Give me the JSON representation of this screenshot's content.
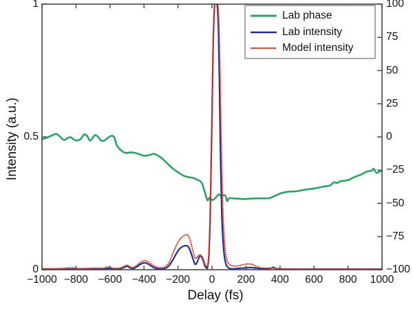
{
  "chart_data": {
    "type": "line",
    "title": "",
    "xlabel": "Delay (fs)",
    "ylabel_left": "Intensity (a.u.)",
    "ylabel_right": "",
    "xlim": [
      -1000,
      1000
    ],
    "ylim_left": [
      0,
      1
    ],
    "ylim_right": [
      -100,
      100
    ],
    "xticks": [
      -1000,
      -800,
      -600,
      -400,
      -200,
      0,
      200,
      400,
      600,
      800,
      1000
    ],
    "yticks_left": [
      0,
      0.5,
      1
    ],
    "yticks_right": [
      100,
      75,
      50,
      25,
      0,
      -25,
      -50,
      -75,
      -100
    ],
    "grid": false,
    "legend_position": "top-right-inside",
    "axis_color": "#454545",
    "series": [
      {
        "name": "Lab phase",
        "axis": "right",
        "color": "#2aa263",
        "style": "solid",
        "width": 2.6,
        "points": [
          [
            -1000,
            -1.8
          ],
          [
            -970,
            -0.5
          ],
          [
            -940,
            1.2
          ],
          [
            -915,
            2.3
          ],
          [
            -895,
            0.3
          ],
          [
            -870,
            -2.3
          ],
          [
            -848,
            -0.8
          ],
          [
            -830,
            -0.3
          ],
          [
            -805,
            -2.5
          ],
          [
            -775,
            -1.8
          ],
          [
            -753,
            1.8
          ],
          [
            -735,
            0.8
          ],
          [
            -716,
            -2.8
          ],
          [
            -690,
            1.2
          ],
          [
            -670,
            0.0
          ],
          [
            -652,
            -2.8
          ],
          [
            -632,
            -2.6
          ],
          [
            -611,
            -0.5
          ],
          [
            -592,
            0.8
          ],
          [
            -575,
            -0.3
          ],
          [
            -559,
            -6.5
          ],
          [
            -530,
            -10.6
          ],
          [
            -506,
            -12.1
          ],
          [
            -478,
            -11.6
          ],
          [
            -449,
            -12.1
          ],
          [
            -425,
            -13.2
          ],
          [
            -397,
            -14.2
          ],
          [
            -368,
            -13.7
          ],
          [
            -344,
            -12.7
          ],
          [
            -324,
            -13.7
          ],
          [
            -303,
            -15.3
          ],
          [
            -275,
            -18.4
          ],
          [
            -247,
            -22.0
          ],
          [
            -223,
            -24.5
          ],
          [
            -194,
            -27.1
          ],
          [
            -166,
            -29.2
          ],
          [
            -142,
            -30.2
          ],
          [
            -113,
            -30.8
          ],
          [
            -85,
            -32.3
          ],
          [
            -61,
            -34.4
          ],
          [
            -45,
            -40.5
          ],
          [
            -32,
            -46.0
          ],
          [
            -25,
            -47.8
          ],
          [
            -15,
            -45.8
          ],
          [
            -5,
            -47.0
          ],
          [
            5,
            -47.5
          ],
          [
            16,
            -46.5
          ],
          [
            30,
            -44.5
          ],
          [
            40,
            -43.2
          ],
          [
            55,
            -44.5
          ],
          [
            70,
            -43.8
          ],
          [
            80,
            -44.5
          ],
          [
            89,
            -48.3
          ],
          [
            100,
            -46.2
          ],
          [
            120,
            -46.2
          ],
          [
            150,
            -46.5
          ],
          [
            190,
            -46.8
          ],
          [
            230,
            -46.5
          ],
          [
            270,
            -46.2
          ],
          [
            310,
            -46.3
          ],
          [
            340,
            -46.0
          ],
          [
            373,
            -44.2
          ],
          [
            413,
            -42.1
          ],
          [
            454,
            -41.2
          ],
          [
            494,
            -41.0
          ],
          [
            534,
            -40.0
          ],
          [
            575,
            -39.3
          ],
          [
            615,
            -38.5
          ],
          [
            656,
            -37.4
          ],
          [
            696,
            -36.4
          ],
          [
            715,
            -34.3
          ],
          [
            737,
            -34.6
          ],
          [
            757,
            -33.3
          ],
          [
            798,
            -32.6
          ],
          [
            838,
            -30.2
          ],
          [
            879,
            -28.2
          ],
          [
            911,
            -26.1
          ],
          [
            939,
            -25.4
          ],
          [
            951,
            -24.0
          ],
          [
            968,
            -27.1
          ],
          [
            984,
            -26.1
          ],
          [
            1000,
            -25.6
          ]
        ]
      },
      {
        "name": "Lab intensity",
        "axis": "left",
        "color": "#232d82",
        "style": "solid",
        "width": 2.2,
        "points": [
          [
            -1000,
            0.002
          ],
          [
            -900,
            0.002
          ],
          [
            -800,
            0.002
          ],
          [
            -700,
            0.003
          ],
          [
            -640,
            0.003
          ],
          [
            -611,
            0.005
          ],
          [
            -580,
            0.003
          ],
          [
            -545,
            0.003
          ],
          [
            -520,
            0.008
          ],
          [
            -500,
            0.013
          ],
          [
            -480,
            0.007
          ],
          [
            -462,
            0.005
          ],
          [
            -440,
            0.012
          ],
          [
            -420,
            0.021
          ],
          [
            -400,
            0.026
          ],
          [
            -383,
            0.024
          ],
          [
            -365,
            0.017
          ],
          [
            -348,
            0.01
          ],
          [
            -330,
            0.005
          ],
          [
            -310,
            0.003
          ],
          [
            -292,
            0.003
          ],
          [
            -272,
            0.006
          ],
          [
            -252,
            0.016
          ],
          [
            -232,
            0.035
          ],
          [
            -212,
            0.058
          ],
          [
            -192,
            0.078
          ],
          [
            -170,
            0.088
          ],
          [
            -146,
            0.09
          ],
          [
            -132,
            0.078
          ],
          [
            -118,
            0.052
          ],
          [
            -105,
            0.028
          ],
          [
            -97,
            0.02
          ],
          [
            -88,
            0.028
          ],
          [
            -75,
            0.048
          ],
          [
            -64,
            0.051
          ],
          [
            -52,
            0.035
          ],
          [
            -42,
            0.015
          ],
          [
            -33,
            0.007
          ],
          [
            -26,
            0.01
          ],
          [
            -18,
            0.06
          ],
          [
            -10,
            0.22
          ],
          [
            -2,
            0.5
          ],
          [
            6,
            0.82
          ],
          [
            10,
            0.92
          ],
          [
            16,
            1.0
          ],
          [
            30,
            1.0
          ],
          [
            38,
            0.9
          ],
          [
            44,
            0.68
          ],
          [
            50,
            0.42
          ],
          [
            58,
            0.2
          ],
          [
            68,
            0.08
          ],
          [
            80,
            0.025
          ],
          [
            95,
            0.008
          ],
          [
            110,
            0.004
          ],
          [
            140,
            0.004
          ],
          [
            170,
            0.006
          ],
          [
            200,
            0.007
          ],
          [
            230,
            0.008
          ],
          [
            260,
            0.006
          ],
          [
            290,
            0.004
          ],
          [
            330,
            0.004
          ],
          [
            355,
            0.007
          ],
          [
            364,
            0.009
          ],
          [
            375,
            0.004
          ],
          [
            400,
            0.003
          ],
          [
            450,
            0.002
          ],
          [
            550,
            0.002
          ],
          [
            700,
            0.002
          ],
          [
            850,
            0.002
          ],
          [
            1000,
            0.002
          ]
        ]
      },
      {
        "name": "Model intensity",
        "axis": "left",
        "color": "#c8462f",
        "style": "dotted",
        "width": 2.2,
        "points": [
          [
            -1000,
            0.004
          ],
          [
            -940,
            0.004
          ],
          [
            -880,
            0.005
          ],
          [
            -830,
            0.008
          ],
          [
            -790,
            0.005
          ],
          [
            -740,
            0.005
          ],
          [
            -690,
            0.006
          ],
          [
            -640,
            0.006
          ],
          [
            -611,
            0.011
          ],
          [
            -580,
            0.006
          ],
          [
            -545,
            0.006
          ],
          [
            -520,
            0.012
          ],
          [
            -500,
            0.017
          ],
          [
            -480,
            0.011
          ],
          [
            -462,
            0.009
          ],
          [
            -440,
            0.018
          ],
          [
            -420,
            0.028
          ],
          [
            -400,
            0.034
          ],
          [
            -383,
            0.032
          ],
          [
            -365,
            0.025
          ],
          [
            -348,
            0.017
          ],
          [
            -330,
            0.011
          ],
          [
            -310,
            0.008
          ],
          [
            -292,
            0.008
          ],
          [
            -272,
            0.013
          ],
          [
            -252,
            0.028
          ],
          [
            -232,
            0.058
          ],
          [
            -212,
            0.088
          ],
          [
            -192,
            0.112
          ],
          [
            -170,
            0.126
          ],
          [
            -146,
            0.132
          ],
          [
            -132,
            0.118
          ],
          [
            -118,
            0.085
          ],
          [
            -105,
            0.052
          ],
          [
            -97,
            0.042
          ],
          [
            -88,
            0.048
          ],
          [
            -75,
            0.055
          ],
          [
            -64,
            0.054
          ],
          [
            -52,
            0.042
          ],
          [
            -42,
            0.022
          ],
          [
            -33,
            0.014
          ],
          [
            -26,
            0.016
          ],
          [
            -18,
            0.07
          ],
          [
            -10,
            0.24
          ],
          [
            -2,
            0.52
          ],
          [
            6,
            0.84
          ],
          [
            12,
            0.95
          ],
          [
            18,
            1.0
          ],
          [
            34,
            1.0
          ],
          [
            42,
            0.9
          ],
          [
            48,
            0.72
          ],
          [
            56,
            0.45
          ],
          [
            64,
            0.23
          ],
          [
            74,
            0.1
          ],
          [
            86,
            0.04
          ],
          [
            100,
            0.022
          ],
          [
            115,
            0.016
          ],
          [
            140,
            0.013
          ],
          [
            170,
            0.017
          ],
          [
            200,
            0.021
          ],
          [
            230,
            0.021
          ],
          [
            260,
            0.013
          ],
          [
            290,
            0.007
          ],
          [
            330,
            0.006
          ],
          [
            360,
            0.006
          ],
          [
            400,
            0.004
          ],
          [
            450,
            0.003
          ],
          [
            550,
            0.003
          ],
          [
            700,
            0.003
          ],
          [
            850,
            0.003
          ],
          [
            1000,
            0.003
          ]
        ]
      }
    ]
  }
}
